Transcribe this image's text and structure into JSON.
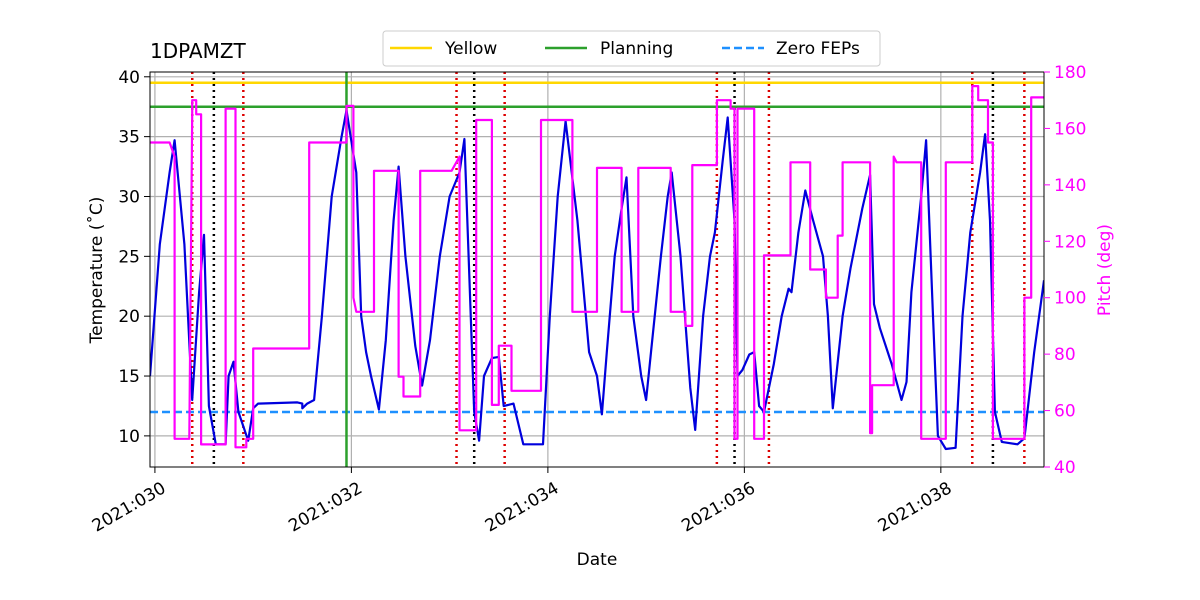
{
  "chart_data": {
    "type": "line",
    "title": "1DPAMZT",
    "xlabel": "Date",
    "ylabel": "Temperature ($^\\circ$C)",
    "ylabel_display": "Temperature (˚C)",
    "y2label": "Pitch (deg)",
    "xlim": [
      29.95,
      39.05
    ],
    "ylim": [
      7.4,
      40.4
    ],
    "y2lim": [
      40,
      180
    ],
    "x_ticks": [
      30,
      32,
      34,
      36,
      38
    ],
    "x_tick_labels": [
      "2021:030",
      "2021:032",
      "2021:034",
      "2021:036",
      "2021:038"
    ],
    "y_ticks": [
      10,
      15,
      20,
      25,
      30,
      35,
      40
    ],
    "y2_ticks": [
      40,
      60,
      80,
      100,
      120,
      140,
      160,
      180
    ],
    "grid": true,
    "legend_position": "top-center",
    "legend": [
      {
        "label": "Yellow",
        "color": "#FFD700",
        "style": "solid"
      },
      {
        "label": "Planning",
        "color": "#2ca02c",
        "style": "solid"
      },
      {
        "label": "Zero FEPs",
        "color": "#1e90ff",
        "style": "dashed"
      }
    ],
    "limits": {
      "yellow": 39.5,
      "planning": 37.5,
      "zero_feps": 12.0
    },
    "planning_vline_x": 31.95,
    "colors": {
      "temperature": "#0000dd",
      "pitch": "#ff00ff",
      "red_vlines": "#dd0000",
      "black_vlines": "#000000",
      "grid": "#b0b0b0"
    },
    "red_vlines_x": [
      30.38,
      30.9,
      33.07,
      33.56,
      35.72,
      36.25,
      38.32,
      38.85
    ],
    "black_vlines_x": [
      30.6,
      33.25,
      35.9,
      38.53
    ],
    "series": [
      {
        "name": "Temperature",
        "axis": "left",
        "color": "#0000dd",
        "points": [
          [
            29.95,
            15.0
          ],
          [
            30.05,
            26.0
          ],
          [
            30.15,
            32.0
          ],
          [
            30.2,
            34.7
          ],
          [
            30.3,
            26.0
          ],
          [
            30.38,
            13.0
          ],
          [
            30.45,
            22.0
          ],
          [
            30.5,
            26.8
          ],
          [
            30.55,
            12.5
          ],
          [
            30.62,
            9.3
          ],
          [
            30.72,
            9.3
          ],
          [
            30.75,
            15.0
          ],
          [
            30.8,
            16.2
          ],
          [
            30.85,
            12.0
          ],
          [
            30.95,
            9.6
          ],
          [
            31.0,
            12.3
          ],
          [
            31.05,
            12.7
          ],
          [
            31.45,
            12.8
          ],
          [
            31.5,
            12.7
          ],
          [
            31.5,
            12.3
          ],
          [
            31.55,
            12.7
          ],
          [
            31.62,
            13.0
          ],
          [
            31.7,
            20.0
          ],
          [
            31.8,
            30.0
          ],
          [
            31.9,
            35.0
          ],
          [
            31.95,
            37.2
          ],
          [
            32.05,
            32.0
          ],
          [
            32.1,
            20.0
          ],
          [
            32.15,
            17.0
          ],
          [
            32.2,
            15.0
          ],
          [
            32.28,
            12.2
          ],
          [
            32.35,
            18.0
          ],
          [
            32.43,
            28.0
          ],
          [
            32.48,
            32.5
          ],
          [
            32.55,
            25.0
          ],
          [
            32.65,
            17.5
          ],
          [
            32.72,
            14.2
          ],
          [
            32.8,
            18.0
          ],
          [
            32.9,
            25.0
          ],
          [
            33.0,
            30.0
          ],
          [
            33.1,
            32.0
          ],
          [
            33.15,
            34.8
          ],
          [
            33.25,
            12.0
          ],
          [
            33.3,
            9.6
          ],
          [
            33.35,
            15.0
          ],
          [
            33.43,
            16.5
          ],
          [
            33.5,
            16.6
          ],
          [
            33.55,
            12.5
          ],
          [
            33.65,
            12.7
          ],
          [
            33.75,
            9.3
          ],
          [
            33.95,
            9.3
          ],
          [
            34.02,
            20.0
          ],
          [
            34.1,
            30.0
          ],
          [
            34.18,
            36.3
          ],
          [
            34.3,
            28.0
          ],
          [
            34.42,
            17.0
          ],
          [
            34.5,
            15.0
          ],
          [
            34.55,
            11.8
          ],
          [
            34.6,
            17.0
          ],
          [
            34.68,
            25.0
          ],
          [
            34.75,
            29.0
          ],
          [
            34.8,
            31.6
          ],
          [
            34.87,
            20.0
          ],
          [
            34.95,
            15.0
          ],
          [
            35.0,
            13.0
          ],
          [
            35.05,
            17.0
          ],
          [
            35.15,
            25.0
          ],
          [
            35.22,
            30.0
          ],
          [
            35.26,
            32.0
          ],
          [
            35.35,
            25.0
          ],
          [
            35.45,
            14.0
          ],
          [
            35.5,
            10.5
          ],
          [
            35.58,
            20.0
          ],
          [
            35.65,
            25.0
          ],
          [
            35.7,
            27.0
          ],
          [
            35.78,
            33.0
          ],
          [
            35.83,
            36.6
          ],
          [
            35.9,
            28.0
          ],
          [
            35.93,
            15.0
          ],
          [
            35.98,
            15.5
          ],
          [
            36.05,
            16.8
          ],
          [
            36.1,
            17.0
          ],
          [
            36.15,
            12.5
          ],
          [
            36.2,
            12.0
          ],
          [
            36.3,
            16.0
          ],
          [
            36.38,
            20.0
          ],
          [
            36.45,
            22.3
          ],
          [
            36.48,
            22.0
          ],
          [
            36.55,
            27.0
          ],
          [
            36.62,
            30.5
          ],
          [
            36.7,
            28.0
          ],
          [
            36.8,
            25.0
          ],
          [
            36.85,
            20.0
          ],
          [
            36.9,
            12.3
          ],
          [
            37.0,
            20.0
          ],
          [
            37.08,
            24.0
          ],
          [
            37.2,
            29.0
          ],
          [
            37.28,
            31.8
          ],
          [
            37.32,
            21.0
          ],
          [
            37.38,
            19.0
          ],
          [
            37.5,
            16.0
          ],
          [
            37.6,
            13.0
          ],
          [
            37.65,
            14.5
          ],
          [
            37.7,
            22.0
          ],
          [
            37.8,
            30.0
          ],
          [
            37.85,
            34.7
          ],
          [
            37.92,
            20.0
          ],
          [
            37.97,
            10.0
          ],
          [
            38.05,
            8.9
          ],
          [
            38.15,
            9.0
          ],
          [
            38.22,
            20.0
          ],
          [
            38.3,
            27.0
          ],
          [
            38.4,
            32.0
          ],
          [
            38.45,
            35.2
          ],
          [
            38.5,
            28.0
          ],
          [
            38.55,
            12.0
          ],
          [
            38.62,
            9.5
          ],
          [
            38.78,
            9.3
          ],
          [
            38.85,
            9.8
          ],
          [
            38.95,
            17.0
          ],
          [
            39.05,
            23.0
          ]
        ]
      },
      {
        "name": "Pitch",
        "axis": "right",
        "color": "#ff00ff",
        "points": [
          [
            29.95,
            155
          ],
          [
            30.15,
            155
          ],
          [
            30.2,
            150
          ],
          [
            30.2,
            50
          ],
          [
            30.35,
            50
          ],
          [
            30.38,
            165
          ],
          [
            30.38,
            170
          ],
          [
            30.42,
            170
          ],
          [
            30.42,
            165
          ],
          [
            30.47,
            165
          ],
          [
            30.47,
            48
          ],
          [
            30.72,
            48
          ],
          [
            30.72,
            167
          ],
          [
            30.82,
            167
          ],
          [
            30.82,
            47
          ],
          [
            30.93,
            47
          ],
          [
            30.93,
            50
          ],
          [
            31.0,
            50
          ],
          [
            31.0,
            82
          ],
          [
            31.57,
            82
          ],
          [
            31.57,
            155
          ],
          [
            31.95,
            155
          ],
          [
            31.95,
            168
          ],
          [
            32.02,
            168
          ],
          [
            32.02,
            100
          ],
          [
            32.05,
            95
          ],
          [
            32.23,
            95
          ],
          [
            32.23,
            145
          ],
          [
            32.48,
            145
          ],
          [
            32.48,
            72
          ],
          [
            32.53,
            72
          ],
          [
            32.53,
            65
          ],
          [
            32.7,
            65
          ],
          [
            32.7,
            145
          ],
          [
            33.02,
            145
          ],
          [
            33.1,
            150
          ],
          [
            33.1,
            53
          ],
          [
            33.27,
            53
          ],
          [
            33.27,
            163
          ],
          [
            33.43,
            163
          ],
          [
            33.43,
            62
          ],
          [
            33.5,
            62
          ],
          [
            33.5,
            83
          ],
          [
            33.63,
            83
          ],
          [
            33.63,
            67
          ],
          [
            33.93,
            67
          ],
          [
            33.93,
            163
          ],
          [
            34.25,
            163
          ],
          [
            34.25,
            95
          ],
          [
            34.5,
            95
          ],
          [
            34.5,
            146
          ],
          [
            34.75,
            146
          ],
          [
            34.75,
            95
          ],
          [
            34.92,
            95
          ],
          [
            34.92,
            146
          ],
          [
            35.25,
            146
          ],
          [
            35.25,
            95
          ],
          [
            35.4,
            95
          ],
          [
            35.4,
            90
          ],
          [
            35.47,
            90
          ],
          [
            35.47,
            147
          ],
          [
            35.72,
            147
          ],
          [
            35.72,
            170
          ],
          [
            35.86,
            170
          ],
          [
            35.86,
            167
          ],
          [
            35.9,
            167
          ],
          [
            35.9,
            50
          ],
          [
            35.93,
            50
          ],
          [
            35.93,
            167
          ],
          [
            36.1,
            167
          ],
          [
            36.1,
            50
          ],
          [
            36.2,
            50
          ],
          [
            36.2,
            115
          ],
          [
            36.47,
            115
          ],
          [
            36.47,
            148
          ],
          [
            36.67,
            148
          ],
          [
            36.67,
            110
          ],
          [
            36.83,
            110
          ],
          [
            36.83,
            100
          ],
          [
            36.95,
            100
          ],
          [
            36.95,
            122
          ],
          [
            37.0,
            122
          ],
          [
            37.0,
            148
          ],
          [
            37.28,
            148
          ],
          [
            37.28,
            52
          ],
          [
            37.3,
            52
          ],
          [
            37.3,
            69
          ],
          [
            37.52,
            69
          ],
          [
            37.52,
            150
          ],
          [
            37.55,
            148
          ],
          [
            37.8,
            148
          ],
          [
            37.8,
            50
          ],
          [
            38.05,
            50
          ],
          [
            38.05,
            148
          ],
          [
            38.32,
            148
          ],
          [
            38.32,
            175
          ],
          [
            38.38,
            175
          ],
          [
            38.38,
            170
          ],
          [
            38.48,
            170
          ],
          [
            38.48,
            155
          ],
          [
            38.53,
            155
          ],
          [
            38.53,
            50
          ],
          [
            38.85,
            50
          ],
          [
            38.85,
            100
          ],
          [
            38.92,
            100
          ],
          [
            38.92,
            171
          ],
          [
            39.05,
            171
          ]
        ]
      }
    ]
  }
}
